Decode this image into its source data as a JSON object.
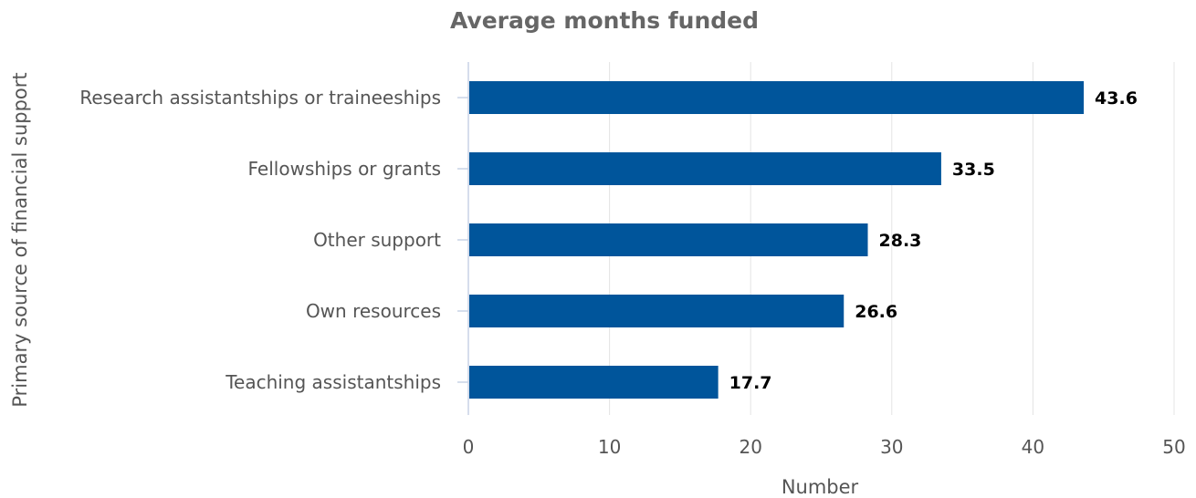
{
  "chart_data": {
    "type": "bar",
    "orientation": "horizontal",
    "title": "Average months funded",
    "xlabel": "Number",
    "ylabel": "Primary source of financial support",
    "categories": [
      "Research assistantships or traineeships",
      "Fellowships or grants",
      "Other support",
      "Own resources",
      "Teaching assistantships"
    ],
    "values": [
      43.6,
      33.5,
      28.3,
      26.6,
      17.7
    ],
    "xlim": [
      0,
      50
    ],
    "xticks": [
      0,
      10,
      20,
      30,
      40,
      50
    ],
    "grid": true,
    "legend": "none",
    "bar_color": "#00559b"
  }
}
